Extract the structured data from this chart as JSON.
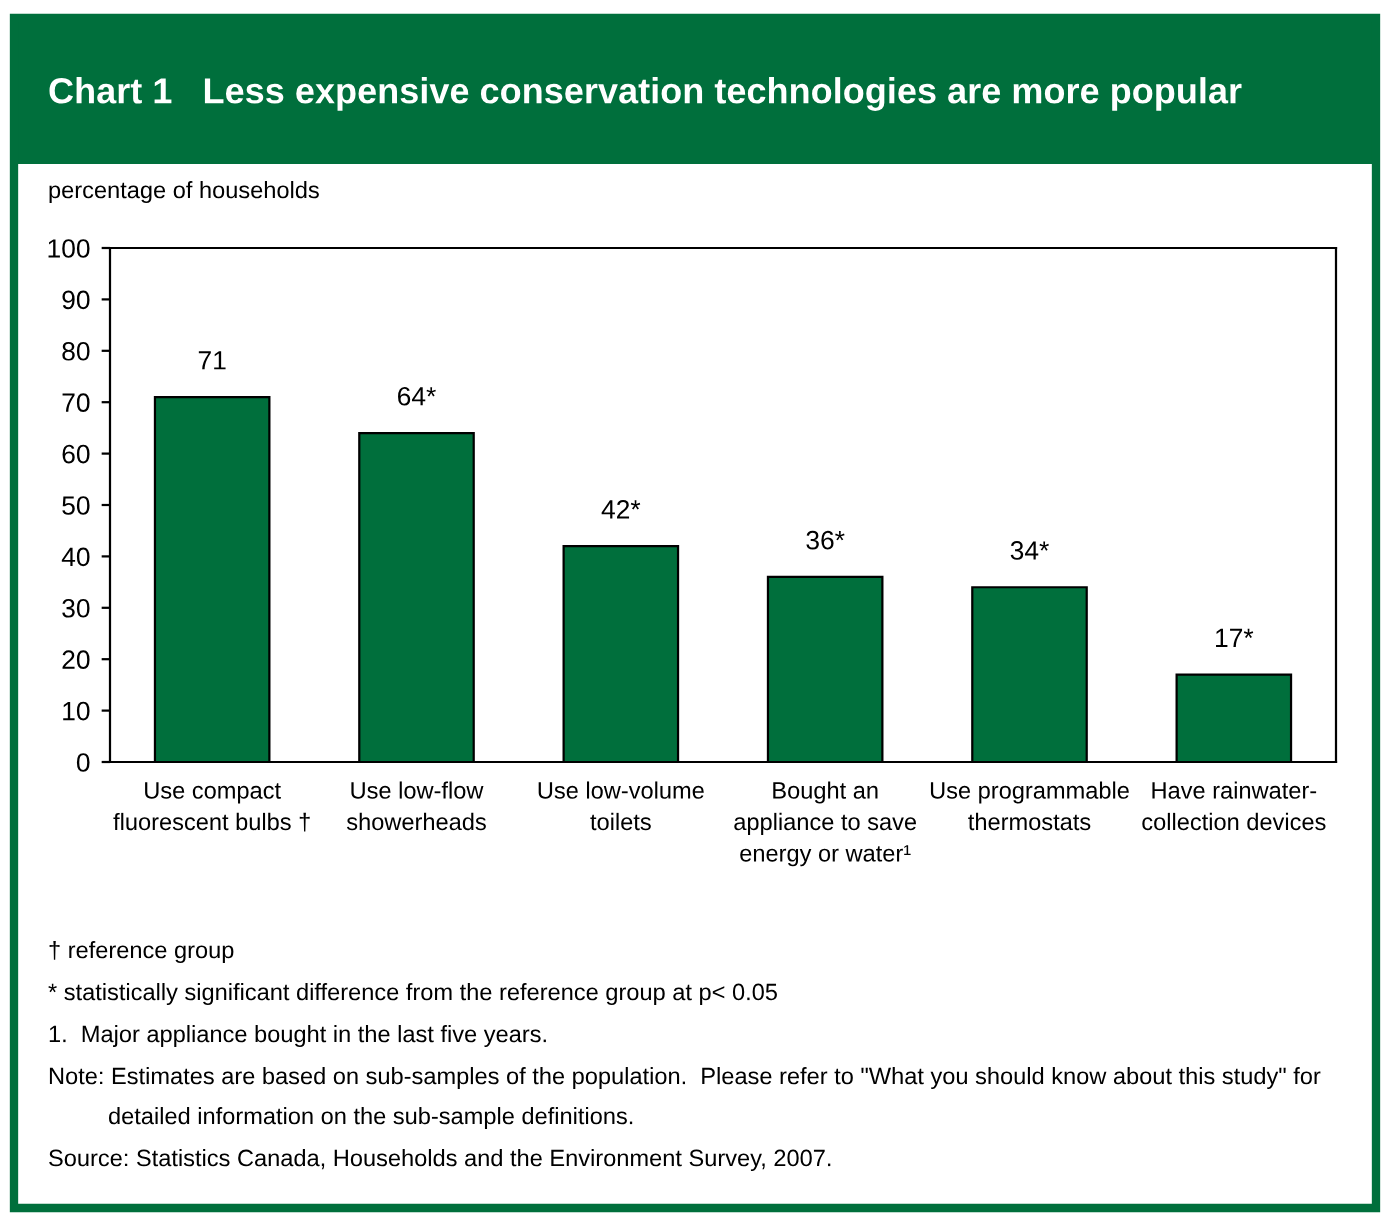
{
  "chart_data": {
    "type": "bar",
    "title": "Chart 1   Less expensive conservation technologies are more popular",
    "ylabel": "percentage of households",
    "categories": [
      "Use compact\nfluorescent bulbs †",
      "Use low-flow\nshowerheads",
      "Use low-volume\ntoilets",
      "Bought an\nappliance to save\nenergy or water¹",
      "Use programmable\nthermostats",
      "Have rainwater-\ncollection devices"
    ],
    "values": [
      71,
      64,
      42,
      36,
      34,
      17
    ],
    "value_labels": [
      "71",
      "64*",
      "42*",
      "36*",
      "34*",
      "17*"
    ],
    "color": "#006f3c",
    "ylim": [
      0,
      100
    ],
    "yticks": [
      0,
      10,
      20,
      30,
      40,
      50,
      60,
      70,
      80,
      90,
      100
    ],
    "annotations": [
      "† reference group",
      "* statistically significant difference from the reference group at p< 0.05",
      "1.  Major appliance bought in the last five years.",
      "Note: Estimates are based on sub-samples of the population.  Please refer to \"What you should know about this study\" for\ndetailed information on the sub-sample definitions.",
      "Source: Statistics Canada, Households and the Environment Survey, 2007."
    ]
  }
}
